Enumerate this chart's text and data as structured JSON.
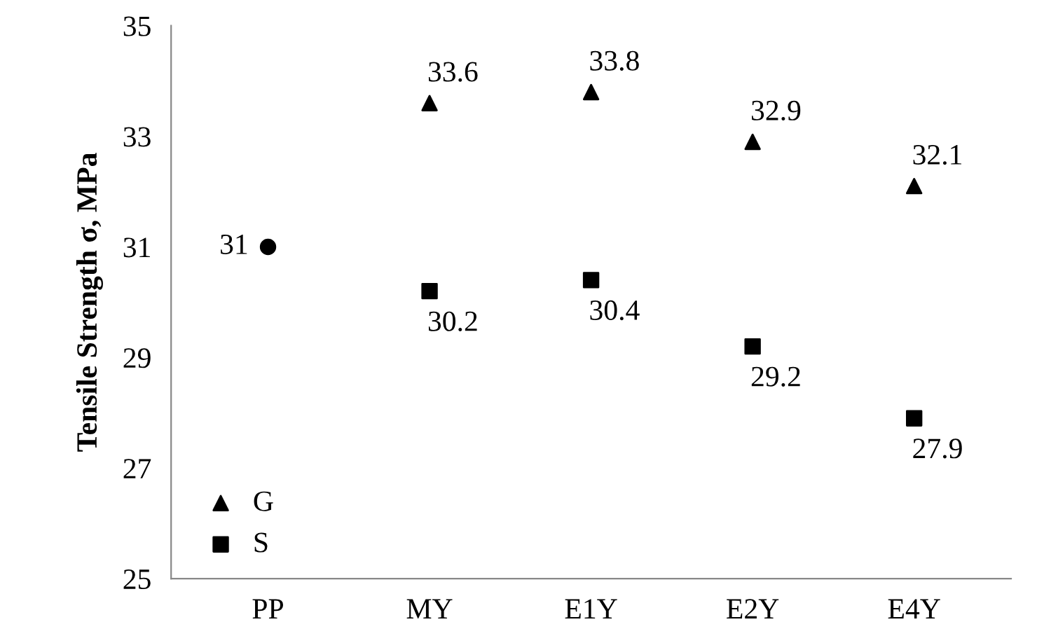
{
  "chart_data": {
    "type": "scatter",
    "ylabel": "Tensile Strength σ, MPa",
    "categories": [
      "PP",
      "MY",
      "E1Y",
      "E2Y",
      "E4Y"
    ],
    "series": [
      {
        "color": "#000000",
        "marker": "circle",
        "values": [
          31,
          null,
          null,
          null,
          null
        ]
      },
      {
        "name": "G",
        "color": "#000000",
        "marker": "triangle",
        "values": [
          null,
          33.6,
          33.8,
          32.9,
          32.1
        ]
      },
      {
        "name": "S",
        "color": "#000000",
        "marker": "square",
        "values": [
          null,
          30.2,
          30.4,
          29.2,
          27.9
        ]
      }
    ],
    "ylim": [
      25,
      35
    ],
    "yticks": [
      25,
      27,
      29,
      31,
      33,
      35
    ],
    "grid": false,
    "legend": "bottom left",
    "data_labels": true
  }
}
